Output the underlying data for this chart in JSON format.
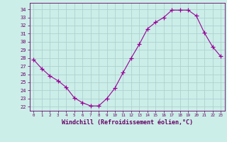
{
  "x": [
    0,
    1,
    2,
    3,
    4,
    5,
    6,
    7,
    8,
    9,
    10,
    11,
    12,
    13,
    14,
    15,
    16,
    17,
    18,
    19,
    20,
    21,
    22,
    23
  ],
  "y": [
    27.8,
    26.7,
    25.8,
    25.2,
    24.4,
    23.1,
    22.5,
    22.1,
    22.1,
    23.0,
    24.3,
    26.2,
    28.0,
    29.7,
    31.6,
    32.4,
    33.0,
    33.9,
    33.9,
    33.9,
    33.2,
    31.1,
    29.4,
    28.2
  ],
  "line_color": "#990099",
  "marker": "+",
  "marker_size": 4,
  "line_width": 0.8,
  "markeredgewidth": 0.9,
  "bg_color": "#cceee8",
  "grid_color": "#aacccc",
  "xlabel": "Windchill (Refroidissement éolien,°C)",
  "xlabel_fontsize": 6.0,
  "tick_color": "#660066",
  "yticks": [
    22,
    23,
    24,
    25,
    26,
    27,
    28,
    29,
    30,
    31,
    32,
    33,
    34
  ],
  "ytick_fontsize": 5.0,
  "xtick_fontsize": 4.2,
  "ylim": [
    21.5,
    34.8
  ],
  "xlim": [
    -0.5,
    23.5
  ]
}
